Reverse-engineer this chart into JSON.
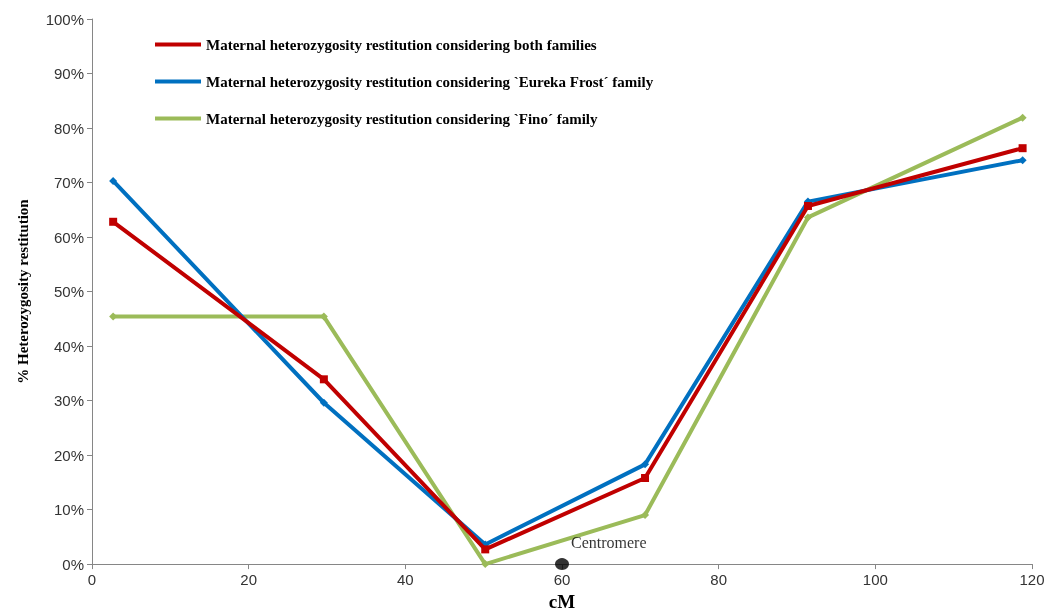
{
  "chart_data": {
    "type": "line",
    "xlabel": "cM",
    "ylabel": "% Heterozygosity restitution",
    "x": [
      2.7,
      29.6,
      50.2,
      70.6,
      91.4,
      118.8
    ],
    "series": [
      {
        "name": "Maternal heterozygosity restitution considering both families",
        "color": "#c00000",
        "marker": "square",
        "values": [
          62.8,
          33.9,
          2.7,
          15.8,
          65.7,
          76.3
        ]
      },
      {
        "name": "Maternal heterozygosity restitution considering `Eureka Frost´ family",
        "color": "#0070c0",
        "marker": "diamond",
        "values": [
          70.3,
          29.6,
          3.6,
          18.3,
          66.5,
          74.1
        ]
      },
      {
        "name": "Maternal heterozygosity restitution considering `Fino´ family",
        "color": "#9bbb59",
        "marker": "diamond",
        "values": [
          45.4,
          45.4,
          0,
          9.0,
          63.6,
          81.9
        ]
      }
    ],
    "xlim": [
      0,
      120
    ],
    "xticks": [
      0,
      20,
      40,
      60,
      80,
      100,
      120
    ],
    "ylim": [
      0,
      100
    ],
    "yticks": [
      {
        "value": 0,
        "label": "0%"
      },
      {
        "value": 10,
        "label": "10%"
      },
      {
        "value": 20,
        "label": "20%"
      },
      {
        "value": 30,
        "label": "30%"
      },
      {
        "value": 40,
        "label": "40%"
      },
      {
        "value": 50,
        "label": "50%"
      },
      {
        "value": 60,
        "label": "60%"
      },
      {
        "value": 70,
        "label": "70%"
      },
      {
        "value": 80,
        "label": "80%"
      },
      {
        "value": 90,
        "label": "90%"
      },
      {
        "value": 100,
        "label": "100%"
      }
    ],
    "annotations": [
      {
        "text": "Centromere",
        "x": 60,
        "y": 0
      }
    ],
    "grid": false,
    "legend": "top left",
    "line_style": "solid"
  }
}
